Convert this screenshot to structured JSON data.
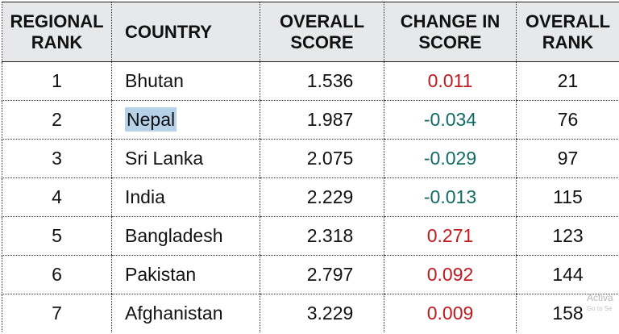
{
  "table": {
    "headers": [
      {
        "line1": "REGIONAL",
        "line2": "RANK"
      },
      {
        "line1": "COUNTRY",
        "line2": ""
      },
      {
        "line1": "OVERALL",
        "line2": "SCORE"
      },
      {
        "line1": "CHANGE IN",
        "line2": "SCORE"
      },
      {
        "line1": "OVERALL",
        "line2": "RANK"
      }
    ],
    "rows": [
      {
        "regional_rank": "1",
        "country": "Bhutan",
        "overall_score": "1.536",
        "change": "0.011",
        "overall_rank": "21"
      },
      {
        "regional_rank": "2",
        "country": "Nepal",
        "overall_score": "1.987",
        "change": "-0.034",
        "overall_rank": "76"
      },
      {
        "regional_rank": "3",
        "country": "Sri Lanka",
        "overall_score": "2.075",
        "change": "-0.029",
        "overall_rank": "97"
      },
      {
        "regional_rank": "4",
        "country": "India",
        "overall_score": "2.229",
        "change": "-0.013",
        "overall_rank": "115"
      },
      {
        "regional_rank": "5",
        "country": "Bangladesh",
        "overall_score": "2.318",
        "change": "0.271",
        "overall_rank": "123"
      },
      {
        "regional_rank": "6",
        "country": "Pakistan",
        "overall_score": "2.797",
        "change": "0.092",
        "overall_rank": "144"
      },
      {
        "regional_rank": "7",
        "country": "Afghanistan",
        "overall_score": "3.229",
        "change": "0.009",
        "overall_rank": "158"
      }
    ],
    "selected_country": "Nepal"
  },
  "colors": {
    "positive_change": "#c0191f",
    "negative_change": "#0f6b63",
    "header_background": "#e6e8ea",
    "selection_highlight": "#b6d1e8"
  },
  "watermark": {
    "line1": "Activa",
    "line2": "Go to Se"
  }
}
